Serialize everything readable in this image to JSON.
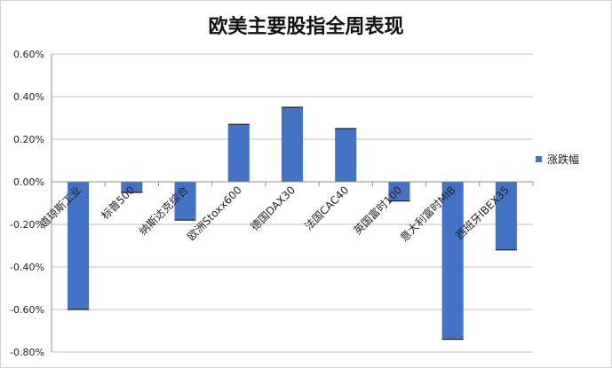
{
  "chart_data": {
    "type": "bar",
    "title": "欧美主要股指全周表现",
    "categories": [
      "道琼斯工业",
      "标普500",
      "纳斯达克综合",
      "欧洲Stoxx600",
      "德国DAX30",
      "法国CAC40",
      "英国富时100",
      "意大利富时MIB",
      "西班牙IBEX35"
    ],
    "series": [
      {
        "name": "涨跌幅",
        "values": [
          -0.6,
          -0.05,
          -0.18,
          0.27,
          0.35,
          0.25,
          -0.09,
          -0.74,
          -0.32
        ]
      }
    ],
    "y_unit": "%",
    "ylim": [
      -0.8,
      0.6
    ],
    "yticks": [
      "0.60%",
      "0.40%",
      "0.20%",
      "0.00%",
      "-0.20%",
      "-0.40%",
      "-0.60%",
      "-0.80%"
    ],
    "grid": true,
    "legend_position": "right",
    "colors": {
      "bar": "#4472C4",
      "grid": "#bfbfbf",
      "axis": "#8c8c8c"
    }
  }
}
